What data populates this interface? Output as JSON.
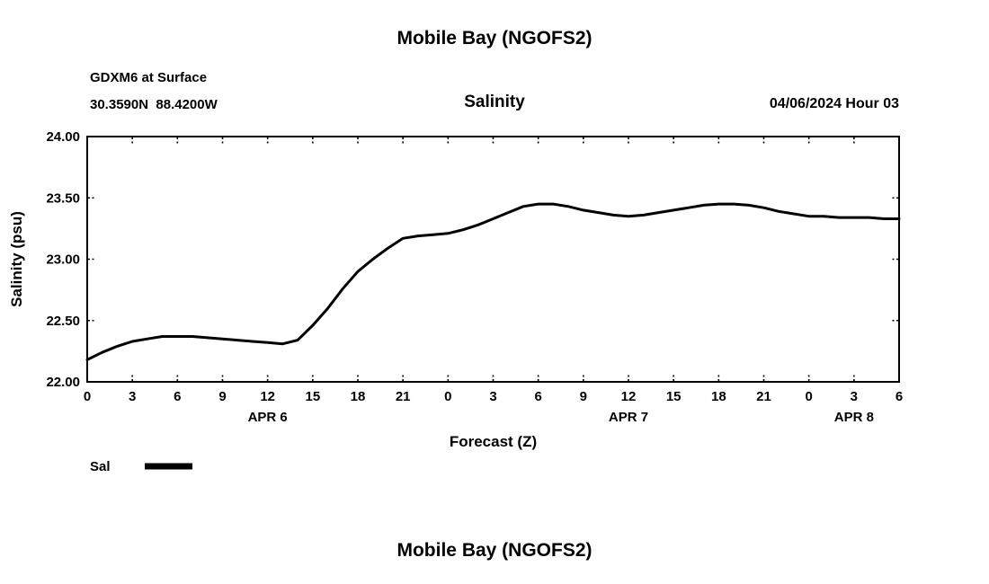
{
  "page_title": "Mobile Bay (NGOFS2)",
  "footer_title": "Mobile Bay (NGOFS2)",
  "header": {
    "station": "GDXM6 at Surface",
    "coords": "30.3590N  88.4200W",
    "chart_title": "Salinity",
    "run_time": "04/06/2024 Hour 03"
  },
  "chart_data": {
    "type": "line",
    "title": "Salinity",
    "xlabel": "Forecast (Z)",
    "ylabel": "Salinity (psu)",
    "xlim": [
      0,
      54
    ],
    "ylim": [
      22.0,
      24.0
    ],
    "grid": false,
    "x_tick_step": 3,
    "x_tick_labels": [
      "0",
      "3",
      "6",
      "9",
      "12",
      "15",
      "18",
      "21",
      "0",
      "3",
      "6",
      "9",
      "12",
      "15",
      "18",
      "21",
      "0",
      "3",
      "6"
    ],
    "y_tick_values": [
      22.0,
      22.5,
      23.0,
      23.5,
      24.0
    ],
    "y_tick_labels": [
      "22.00",
      "22.50",
      "23.00",
      "23.50",
      "24.00"
    ],
    "date_labels": [
      {
        "label": "APR 6",
        "x": 12
      },
      {
        "label": "APR 7",
        "x": 36
      },
      {
        "label": "APR 8",
        "x": 51
      }
    ],
    "legend": {
      "label": "Sal",
      "position": "below-left"
    },
    "series": [
      {
        "name": "Sal",
        "color": "#000000",
        "x": [
          0,
          1,
          2,
          3,
          4,
          5,
          6,
          7,
          8,
          9,
          10,
          11,
          12,
          13,
          14,
          15,
          16,
          17,
          18,
          19,
          20,
          21,
          22,
          23,
          24,
          25,
          26,
          27,
          28,
          29,
          30,
          31,
          32,
          33,
          34,
          35,
          36,
          37,
          38,
          39,
          40,
          41,
          42,
          43,
          44,
          45,
          46,
          47,
          48,
          49,
          50,
          51,
          52,
          53,
          54
        ],
        "values": [
          22.18,
          22.24,
          22.29,
          22.33,
          22.35,
          22.37,
          22.37,
          22.37,
          22.36,
          22.35,
          22.34,
          22.33,
          22.32,
          22.31,
          22.34,
          22.46,
          22.6,
          22.76,
          22.9,
          23.0,
          23.09,
          23.17,
          23.19,
          23.2,
          23.21,
          23.24,
          23.28,
          23.33,
          23.38,
          23.43,
          23.45,
          23.45,
          23.43,
          23.4,
          23.38,
          23.36,
          23.35,
          23.36,
          23.38,
          23.4,
          23.42,
          23.44,
          23.45,
          23.45,
          23.44,
          23.42,
          23.39,
          23.37,
          23.35,
          23.35,
          23.34,
          23.34,
          23.34,
          23.33,
          23.33
        ]
      }
    ]
  }
}
